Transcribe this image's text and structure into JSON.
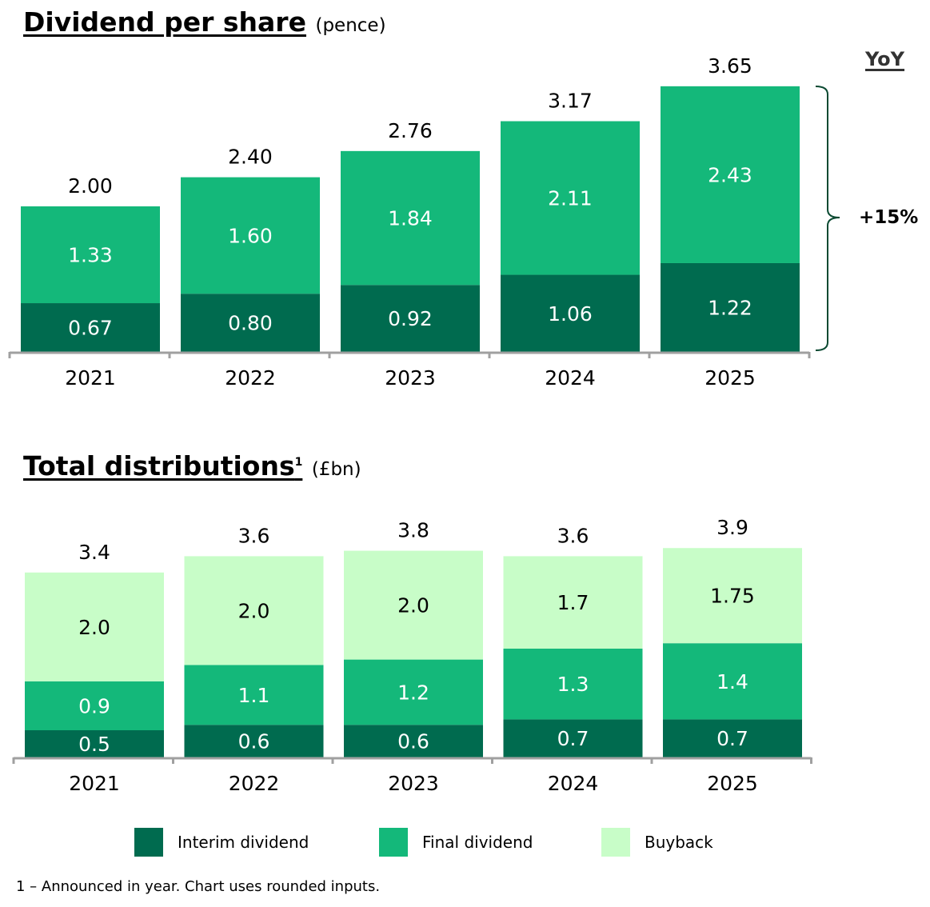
{
  "colors": {
    "interim": "#006b4f",
    "final": "#14b87a",
    "buyback": "#c8fdc8",
    "axis": "#a0a0a0",
    "bracket": "#0b4a32"
  },
  "legend": [
    {
      "key": "interim",
      "label": "Interim dividend"
    },
    {
      "key": "final",
      "label": "Final dividend"
    },
    {
      "key": "buyback",
      "label": "Buyback"
    }
  ],
  "footnote": "1 – Announced in year. Chart uses rounded inputs.",
  "chart_data": [
    {
      "type": "bar",
      "stacked": true,
      "title": "Dividend per share",
      "unit": "(pence)",
      "categories": [
        "2021",
        "2022",
        "2023",
        "2024",
        "2025"
      ],
      "series": [
        {
          "name": "Interim dividend",
          "values": [
            0.67,
            0.8,
            0.92,
            1.06,
            1.22
          ],
          "labels": [
            "0.67",
            "0.80",
            "0.92",
            "1.06",
            "1.22"
          ]
        },
        {
          "name": "Final dividend",
          "values": [
            1.33,
            1.6,
            1.84,
            2.11,
            2.43
          ],
          "labels": [
            "1.33",
            "1.60",
            "1.84",
            "2.11",
            "2.43"
          ]
        }
      ],
      "totals": [
        "2.00",
        "2.40",
        "2.76",
        "3.17",
        "3.65"
      ],
      "annotation": {
        "header": "YoY",
        "value": "+15%"
      },
      "ylim": [
        0,
        3.65
      ]
    },
    {
      "type": "bar",
      "stacked": true,
      "title": "Total distributions",
      "title_sup": "1",
      "unit": "(£bn)",
      "categories": [
        "2021",
        "2022",
        "2023",
        "2024",
        "2025"
      ],
      "series": [
        {
          "name": "Interim dividend",
          "values": [
            0.5,
            0.6,
            0.6,
            0.7,
            0.7
          ],
          "labels": [
            "0.5",
            "0.6",
            "0.6",
            "0.7",
            "0.7"
          ]
        },
        {
          "name": "Final dividend",
          "values": [
            0.9,
            1.1,
            1.2,
            1.3,
            1.4
          ],
          "labels": [
            "0.9",
            "1.1",
            "1.2",
            "1.3",
            "1.4"
          ]
        },
        {
          "name": "Buyback",
          "values": [
            2.0,
            2.0,
            2.0,
            1.7,
            1.75
          ],
          "labels": [
            "2.0",
            "2.0",
            "2.0",
            "1.7",
            "1.75"
          ]
        }
      ],
      "totals": [
        "3.4",
        "3.6",
        "3.8",
        "3.6",
        "3.9"
      ],
      "ylim": [
        0,
        3.9
      ]
    }
  ]
}
